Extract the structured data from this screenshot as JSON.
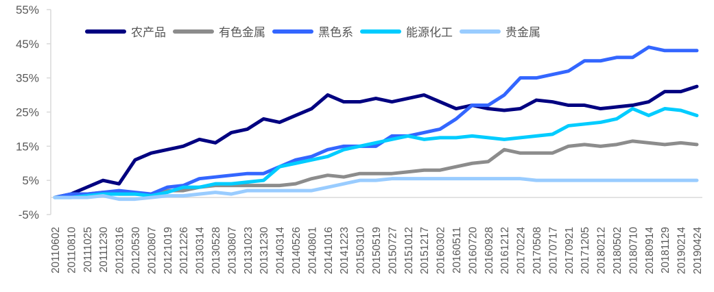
{
  "chart_data": {
    "type": "line",
    "title": "",
    "xlabel": "",
    "ylabel": "",
    "ylim": [
      -5,
      55
    ],
    "yticks": [
      "-5%",
      "5%",
      "15%",
      "25%",
      "35%",
      "45%",
      "55%"
    ],
    "ytick_values": [
      -5,
      5,
      15,
      25,
      35,
      45,
      55
    ],
    "grid": false,
    "legend_position": "top",
    "x": [
      "20110602",
      "20110810",
      "20111025",
      "20111230",
      "20120316",
      "20120530",
      "20120807",
      "20121019",
      "20121226",
      "20130314",
      "20130528",
      "20130807",
      "20131023",
      "20131230",
      "20140314",
      "20140526",
      "20140801",
      "20141016",
      "20141223",
      "20150310",
      "20150519",
      "20150727",
      "20151012",
      "20151217",
      "20160302",
      "20160511",
      "20160720",
      "20160928",
      "20161212",
      "20170224",
      "20170508",
      "20170717",
      "20170921",
      "20171205",
      "20180212",
      "20180502",
      "20180710",
      "20180914",
      "20181129",
      "20190214",
      "20190424"
    ],
    "series": [
      {
        "name": "农产品",
        "color": "#000080",
        "values": [
          0,
          1,
          3,
          5,
          4,
          11,
          13,
          14,
          15,
          17,
          16,
          19,
          20,
          23,
          22,
          24,
          26,
          30,
          28,
          28,
          29,
          28,
          29,
          30,
          28,
          26,
          27,
          26,
          25.5,
          26,
          28.5,
          28,
          27,
          27,
          26,
          26.5,
          27,
          28,
          31,
          31,
          32.5
        ]
      },
      {
        "name": "有色金属",
        "color": "#8c8c8c",
        "values": [
          0,
          1,
          1,
          1.5,
          1,
          1,
          1,
          2,
          2,
          3,
          3.5,
          3.5,
          3.5,
          3.5,
          3.5,
          4,
          5.5,
          6.5,
          6,
          7,
          7,
          7,
          7.5,
          8,
          8,
          9,
          10,
          10.5,
          14,
          13,
          13,
          13,
          15,
          15.5,
          15,
          15.5,
          16.5,
          16,
          15.5,
          16,
          15.5
        ]
      },
      {
        "name": "黑色系",
        "color": "#3366ff",
        "values": [
          0,
          1,
          1,
          1.5,
          2,
          1.5,
          1,
          3,
          3.5,
          5.5,
          6,
          6.5,
          7,
          7,
          9,
          11,
          12,
          14,
          15,
          15,
          15,
          18,
          18,
          19,
          20,
          23,
          27,
          27,
          30,
          35,
          35,
          36,
          37,
          40,
          40,
          41,
          41,
          44,
          43,
          43,
          43
        ]
      },
      {
        "name": "能源化工",
        "color": "#00ccff",
        "values": [
          0,
          0,
          0.5,
          1,
          1,
          1,
          0.5,
          1.5,
          3,
          3,
          4,
          4,
          4.5,
          5,
          9,
          10,
          11,
          12,
          14,
          15,
          16,
          17,
          18,
          17,
          17.5,
          17.5,
          18,
          17.5,
          17,
          17.5,
          18,
          18.5,
          21,
          21.5,
          22,
          23,
          26,
          24,
          26,
          25.5,
          24
        ]
      },
      {
        "name": "贵金属",
        "color": "#99ccff",
        "values": [
          0,
          0,
          0,
          0.5,
          -0.5,
          -0.5,
          0,
          0.5,
          0.5,
          1,
          1.5,
          1,
          2,
          2,
          2,
          2,
          2,
          3,
          4,
          5,
          5,
          5.5,
          5.5,
          5.5,
          5.5,
          5.5,
          5.5,
          5.5,
          5.5,
          5.5,
          5,
          5,
          5,
          5,
          5,
          5,
          5,
          5,
          5,
          5,
          5
        ]
      }
    ]
  }
}
